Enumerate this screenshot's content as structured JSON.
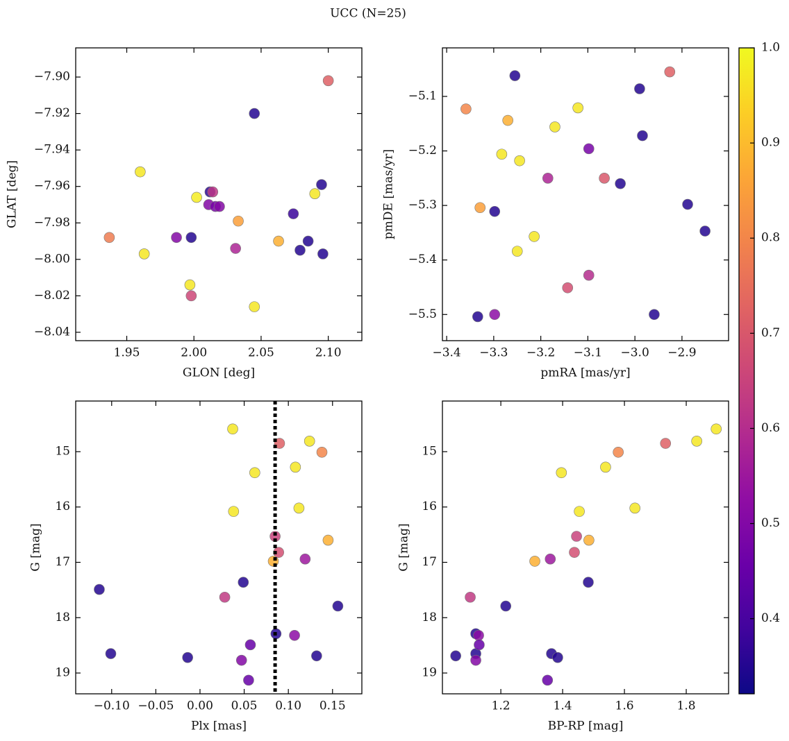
{
  "title": "UCC (N=25)",
  "colorbar": {
    "colormap": "plasma",
    "clim": [
      0.321,
      1.0
    ],
    "ticks": [
      0.4,
      0.5,
      0.6,
      0.7,
      0.8,
      0.9,
      {
        "value": 1.0,
        "label": "1.0"
      }
    ]
  },
  "chart_data": [
    {
      "type": "scatter",
      "xlabel": "GLON [deg]",
      "ylabel": "GLAT [deg]",
      "xlim": [
        1.912,
        2.125
      ],
      "ylim": [
        -8.0446,
        -7.884
      ],
      "xticks": [
        1.95,
        {
          "value": 2.0,
          "label": "2.00"
        },
        2.05,
        {
          "value": 2.1,
          "label": "2.10"
        }
      ],
      "yticks": [
        {
          "value": -7.9,
          "label": "−7.90"
        },
        {
          "value": -7.92,
          "label": "−7.92"
        },
        {
          "value": -7.94,
          "label": "−7.94"
        },
        {
          "value": -7.96,
          "label": "−7.96"
        },
        {
          "value": -7.98,
          "label": "−7.98"
        },
        {
          "value": -8.0,
          "label": "−8.00"
        },
        {
          "value": -8.02,
          "label": "−8.02"
        },
        {
          "value": -8.04,
          "label": "−8.04"
        }
      ],
      "x": [
        2.1,
        2.045,
        1.96,
        2.002,
        2.012,
        2.014,
        2.095,
        2.09,
        2.011,
        2.016,
        2.019,
        2.033,
        2.074,
        1.937,
        1.963,
        1.987,
        1.998,
        2.031,
        2.063,
        2.079,
        2.085,
        2.096,
        1.997,
        1.998,
        2.045
      ],
      "y": [
        -7.902,
        -7.92,
        -7.952,
        -7.966,
        -7.963,
        -7.963,
        -7.959,
        -7.964,
        -7.97,
        -7.971,
        -7.971,
        -7.979,
        -7.975,
        -7.988,
        -7.997,
        -7.988,
        -7.988,
        -7.994,
        -7.99,
        -7.995,
        -7.99,
        -7.997,
        -8.014,
        -8.02,
        -8.026
      ],
      "c": [
        0.72,
        0.35,
        0.97,
        0.98,
        0.36,
        0.62,
        0.35,
        0.97,
        0.5,
        0.48,
        0.5,
        0.85,
        0.38,
        0.78,
        0.97,
        0.5,
        0.35,
        0.58,
        0.88,
        0.35,
        0.35,
        0.35,
        0.97,
        0.66,
        0.97
      ]
    },
    {
      "type": "scatter",
      "xlabel": "pmRA [mas/yr]",
      "ylabel": "pmDE [mas/yr]",
      "xlim": [
        -3.409,
        -2.801
      ],
      "ylim": [
        -5.548,
        -5.011
      ],
      "xticks": [
        {
          "value": -3.4,
          "label": "−3.4"
        },
        {
          "value": -3.3,
          "label": "−3.3"
        },
        {
          "value": -3.2,
          "label": "−3.2"
        },
        {
          "value": -3.1,
          "label": "−3.1"
        },
        {
          "value": -3.0,
          "label": "−3.0"
        },
        {
          "value": -2.9,
          "label": "−2.9"
        }
      ],
      "yticks": [
        {
          "value": -5.1,
          "label": "−5.1"
        },
        {
          "value": -5.2,
          "label": "−5.2"
        },
        {
          "value": -5.3,
          "label": "−5.3"
        },
        {
          "value": -5.4,
          "label": "−5.4"
        },
        {
          "value": -5.5,
          "label": "−5.5"
        }
      ],
      "x": [
        -2.926,
        -3.255,
        -2.99,
        -3.359,
        -3.121,
        -3.27,
        -3.17,
        -2.984,
        -3.098,
        -3.283,
        -3.245,
        -3.185,
        -3.065,
        -3.031,
        -2.888,
        -3.329,
        -3.298,
        -2.851,
        -3.214,
        -3.25,
        -3.143,
        -3.098,
        -3.334,
        -3.298,
        -2.959
      ],
      "y": [
        -5.055,
        -5.062,
        -5.086,
        -5.123,
        -5.121,
        -5.144,
        -5.156,
        -5.172,
        -5.196,
        -5.206,
        -5.218,
        -5.25,
        -5.25,
        -5.26,
        -5.298,
        -5.304,
        -5.311,
        -5.347,
        -5.357,
        -5.384,
        -5.451,
        -5.428,
        -5.504,
        -5.5,
        -5.5
      ],
      "c": [
        0.72,
        0.35,
        0.35,
        0.8,
        0.97,
        0.88,
        0.97,
        0.35,
        0.48,
        0.97,
        0.97,
        0.58,
        0.7,
        0.35,
        0.35,
        0.85,
        0.35,
        0.35,
        0.97,
        0.97,
        0.68,
        0.6,
        0.35,
        0.52,
        0.35
      ]
    },
    {
      "type": "scatter",
      "xlabel": "Plx [mas]",
      "ylabel": "G [mag]",
      "xlim": [
        -0.1407,
        0.1832
      ],
      "ylim": [
        19.376,
        14.085
      ],
      "vline": 0.085,
      "xticks": [
        {
          "value": -0.1,
          "label": "−0.10"
        },
        {
          "value": -0.05,
          "label": "−0.05"
        },
        {
          "value": 0.0,
          "label": "0.00"
        },
        0.05,
        {
          "value": 0.1,
          "label": "0.10"
        },
        0.15
      ],
      "yticks": [
        15,
        16,
        17,
        18,
        19
      ],
      "x": [
        0.037,
        0.09,
        0.124,
        0.138,
        0.108,
        0.062,
        0.038,
        0.112,
        0.145,
        0.085,
        0.089,
        0.083,
        0.119,
        -0.114,
        0.049,
        0.028,
        0.156,
        0.086,
        0.107,
        0.057,
        -0.101,
        -0.014,
        0.047,
        0.132,
        0.055
      ],
      "y": [
        14.59,
        14.85,
        14.81,
        15.01,
        15.28,
        15.38,
        16.08,
        16.02,
        16.6,
        16.53,
        16.82,
        16.98,
        16.94,
        17.49,
        17.36,
        17.63,
        17.79,
        18.29,
        18.32,
        18.49,
        18.65,
        18.72,
        18.77,
        18.69,
        19.13
      ],
      "c": [
        0.97,
        0.72,
        0.97,
        0.8,
        0.97,
        0.97,
        0.97,
        0.97,
        0.88,
        0.65,
        0.68,
        0.88,
        0.55,
        0.35,
        0.35,
        0.63,
        0.35,
        0.35,
        0.52,
        0.45,
        0.35,
        0.35,
        0.5,
        0.35,
        0.45
      ]
    },
    {
      "type": "scatter",
      "xlabel": "BP-RP [mag]",
      "ylabel": "G [mag]",
      "xlim": [
        1.011,
        1.937
      ],
      "ylim": [
        19.376,
        14.085
      ],
      "xticks": [
        1.2,
        1.4,
        1.6,
        1.8
      ],
      "yticks": [
        15,
        16,
        17,
        18,
        19
      ],
      "x": [
        1.897,
        1.834,
        1.733,
        1.58,
        1.539,
        1.396,
        1.454,
        1.634,
        1.485,
        1.445,
        1.438,
        1.31,
        1.36,
        1.119,
        1.483,
        1.101,
        1.216,
        1.119,
        1.128,
        1.13,
        1.364,
        1.384,
        1.119,
        1.054,
        1.351
      ],
      "y": [
        14.59,
        14.81,
        14.85,
        15.01,
        15.28,
        15.38,
        16.08,
        16.02,
        16.6,
        16.53,
        16.82,
        16.98,
        16.94,
        18.65,
        17.36,
        17.63,
        17.79,
        18.29,
        18.32,
        18.49,
        18.65,
        18.72,
        18.77,
        18.69,
        19.13
      ],
      "c": [
        0.97,
        0.97,
        0.72,
        0.8,
        0.97,
        0.97,
        0.97,
        0.97,
        0.88,
        0.65,
        0.68,
        0.88,
        0.55,
        0.35,
        0.35,
        0.63,
        0.35,
        0.35,
        0.52,
        0.45,
        0.35,
        0.35,
        0.5,
        0.35,
        0.45
      ]
    }
  ]
}
